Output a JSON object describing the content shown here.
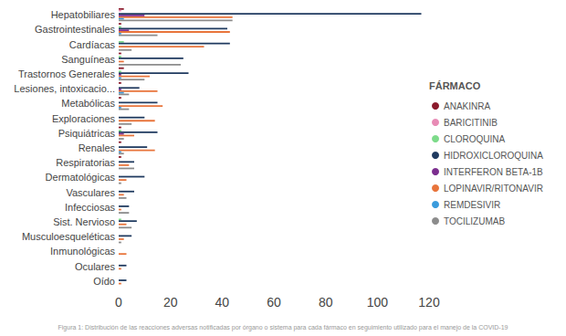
{
  "chart_data": {
    "type": "bar",
    "orientation": "horizontal",
    "legend": "right",
    "legend_title": "FÁRMACO",
    "grid": false,
    "annotations": [
      "Figura 1: Distribución de las reacciones adversas notificadas por órgano o sistema para cada fármaco en seguimiento utilizado para el manejo de la COVID-19"
    ],
    "categories": [
      "Hepatobiliares",
      "Gastrointestinales",
      "Cardíacas",
      "Sanguíneas",
      "Trastornos Generales",
      "Lesiones, intoxicacio...",
      "Metabólicas",
      "Exploraciones",
      "Psiquiátricas",
      "Renales",
      "Respiratorias",
      "Dermatológicas",
      "Vasculares",
      "Infecciosas",
      "Sist. Nervioso",
      "Musculoesqueléticas",
      "Inmunológicas",
      "Oculares",
      "Oído"
    ],
    "xlim": [
      0,
      120
    ],
    "xticks": [
      0,
      20,
      40,
      60,
      80,
      100,
      120
    ],
    "series": [
      {
        "name": "ANAKINRA",
        "color": "#8b1a2b",
        "values": [
          2,
          1,
          0,
          1,
          2,
          1,
          1,
          0,
          1,
          1,
          1,
          0,
          0,
          0,
          0,
          0,
          0,
          0,
          0
        ]
      },
      {
        "name": "BARICITINIB",
        "color": "#e88bb5",
        "values": [
          1,
          0,
          0,
          0,
          0,
          0,
          0,
          0,
          0,
          0,
          0,
          0,
          0,
          0,
          0,
          0,
          0,
          0,
          0
        ]
      },
      {
        "name": "CLOROQUINA",
        "color": "#7ddb8a",
        "values": [
          0,
          1,
          2,
          1,
          1,
          0,
          0,
          0,
          1,
          0,
          0,
          0,
          0,
          0,
          1,
          0,
          0,
          0,
          0
        ]
      },
      {
        "name": "HIDROXICLOROQUINA",
        "color": "#1f3a5f",
        "values": [
          117,
          42,
          43,
          25,
          27,
          8,
          15,
          10,
          15,
          11,
          6,
          10,
          6,
          4,
          7,
          5,
          0,
          3,
          3
        ]
      },
      {
        "name": "INTERFERON BETA-1B",
        "color": "#7b2d8e",
        "values": [
          10,
          4,
          0,
          0,
          1,
          1,
          0,
          0,
          2,
          0,
          0,
          0,
          0,
          0,
          0,
          0,
          0,
          0,
          0
        ]
      },
      {
        "name": "LOPINAVIR/RITONAVIR",
        "color": "#e8743b",
        "values": [
          44,
          43,
          33,
          2,
          12,
          15,
          17,
          14,
          6,
          14,
          4,
          3,
          2,
          1,
          3,
          2,
          3,
          1,
          1
        ]
      },
      {
        "name": "REMDESIVIR",
        "color": "#3a9bdc",
        "values": [
          2,
          1,
          0,
          0,
          1,
          2,
          1,
          0,
          0,
          1,
          0,
          0,
          0,
          0,
          0,
          0,
          0,
          0,
          0
        ]
      },
      {
        "name": "TOCILIZUMAB",
        "color": "#8c8c8c",
        "values": [
          44,
          15,
          5,
          24,
          10,
          4,
          4,
          5,
          2,
          2,
          6,
          1,
          3,
          4,
          5,
          1,
          0,
          0,
          0
        ]
      }
    ]
  }
}
